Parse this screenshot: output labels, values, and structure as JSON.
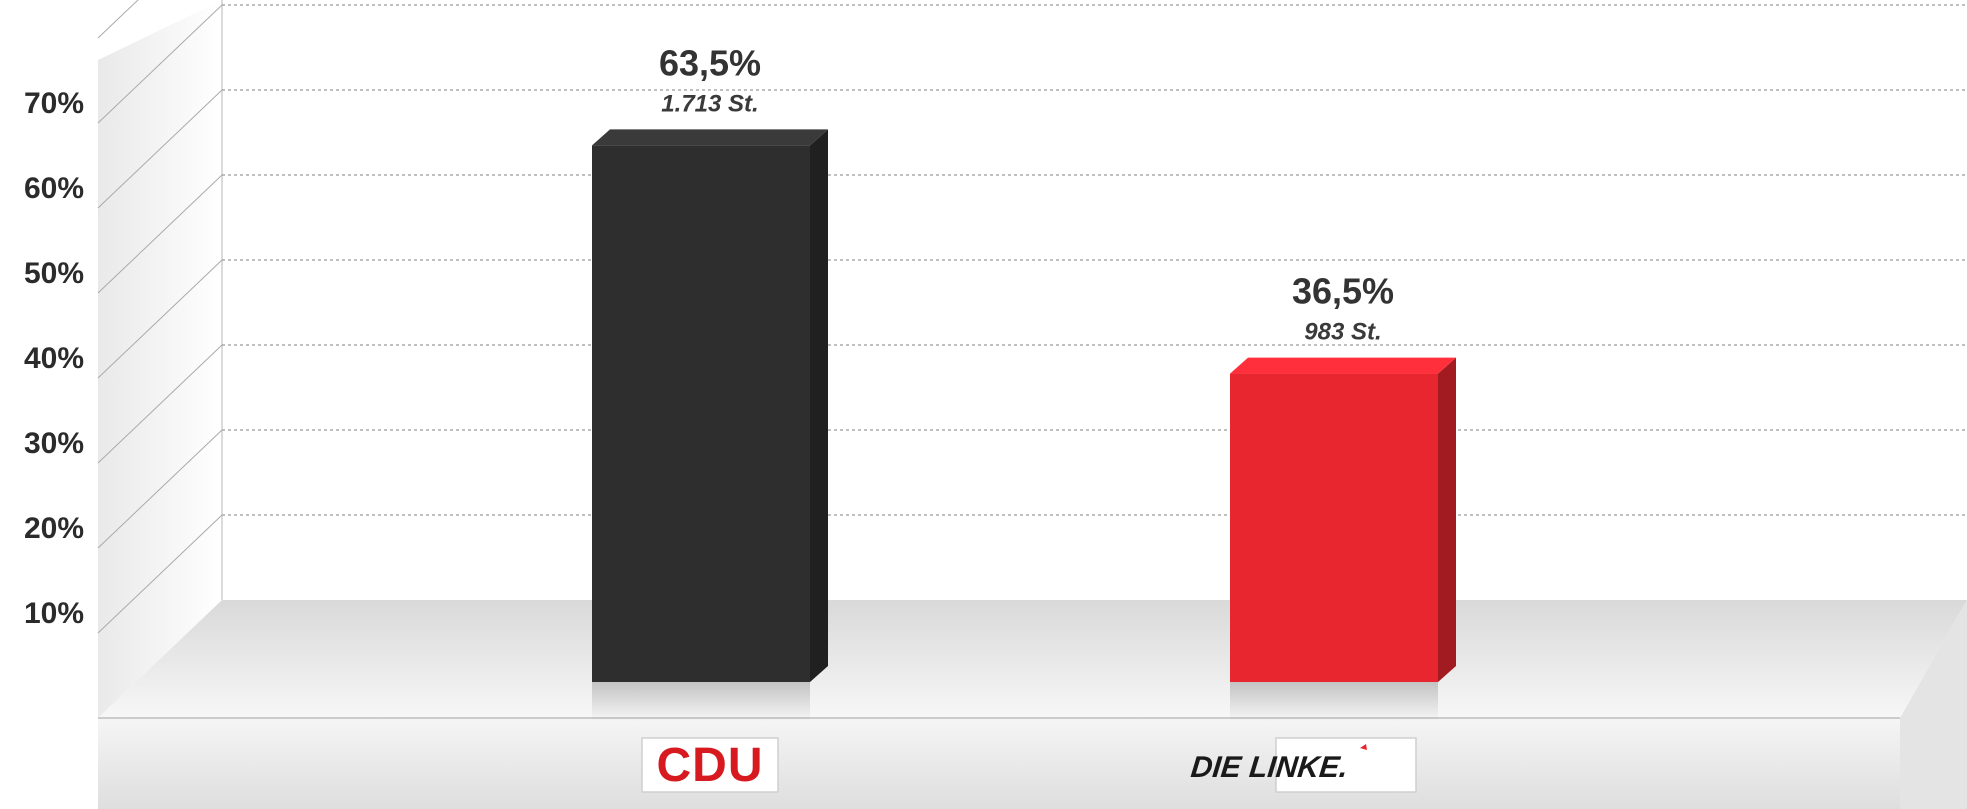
{
  "chart_data": {
    "type": "bar",
    "title": "",
    "xlabel": "",
    "ylabel": "",
    "ylim": [
      0,
      80
    ],
    "y_ticks": [
      {
        "value": 10,
        "label": "10%"
      },
      {
        "value": 20,
        "label": "20%"
      },
      {
        "value": 30,
        "label": "30%"
      },
      {
        "value": 40,
        "label": "40%"
      },
      {
        "value": 50,
        "label": "50%"
      },
      {
        "value": 60,
        "label": "60%"
      },
      {
        "value": 70,
        "label": "70%"
      }
    ],
    "grid": true,
    "legend": "none",
    "categories": [
      "CDU",
      "DIE LINKE."
    ],
    "bars": [
      {
        "category": "CDU",
        "value": 63.5,
        "value_label": "63,5%",
        "votes_label": "1.713 St.",
        "color": "#2e2e2e",
        "logo_text": "CDU",
        "logo_color": "#d71920"
      },
      {
        "category": "DIE LINKE.",
        "value": 36.5,
        "value_label": "36,5%",
        "votes_label": "983 St.",
        "color": "#e8262f",
        "logo_text": "DIE LINKE.",
        "logo_color": "#1a1a1a"
      }
    ]
  }
}
